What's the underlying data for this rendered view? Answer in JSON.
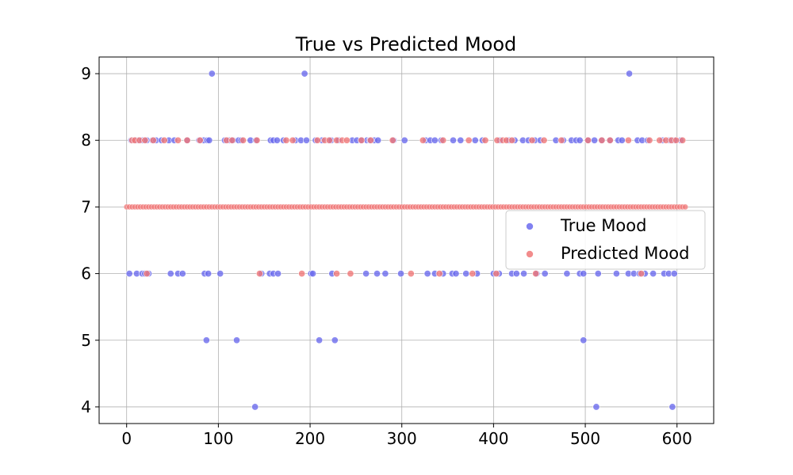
{
  "chart_data": {
    "type": "scatter",
    "title": "True vs Predicted Mood",
    "xlabel": "",
    "ylabel": "",
    "xlim": [
      -30,
      640
    ],
    "ylim": [
      3.75,
      9.25
    ],
    "xticks": [
      0,
      100,
      200,
      300,
      400,
      500,
      600
    ],
    "yticks": [
      4,
      5,
      6,
      7,
      8,
      9
    ],
    "grid": true,
    "legend_position": "center-right",
    "colors": {
      "true": "#6b6bee",
      "predicted": "#f07878",
      "axes": "#000000",
      "grid": "#b0b0b0"
    },
    "series": [
      {
        "name": "True Mood",
        "points": [
          [
            93,
            9
          ],
          [
            194,
            9
          ],
          [
            548,
            9
          ],
          [
            5,
            8
          ],
          [
            8,
            8
          ],
          [
            12,
            8
          ],
          [
            17,
            8
          ],
          [
            22,
            8
          ],
          [
            28,
            8
          ],
          [
            32,
            8
          ],
          [
            38,
            8
          ],
          [
            46,
            8
          ],
          [
            52,
            8
          ],
          [
            66,
            8
          ],
          [
            79,
            8
          ],
          [
            84,
            8
          ],
          [
            88,
            8
          ],
          [
            90,
            8
          ],
          [
            107,
            8
          ],
          [
            112,
            8
          ],
          [
            116,
            8
          ],
          [
            122,
            8
          ],
          [
            125,
            8
          ],
          [
            135,
            8
          ],
          [
            141,
            8
          ],
          [
            157,
            8
          ],
          [
            160,
            8
          ],
          [
            164,
            8
          ],
          [
            171,
            8
          ],
          [
            184,
            8
          ],
          [
            190,
            8
          ],
          [
            196,
            8
          ],
          [
            206,
            8
          ],
          [
            213,
            8
          ],
          [
            220,
            8
          ],
          [
            223,
            8
          ],
          [
            231,
            8
          ],
          [
            246,
            8
          ],
          [
            251,
            8
          ],
          [
            256,
            8
          ],
          [
            262,
            8
          ],
          [
            265,
            8
          ],
          [
            270,
            8
          ],
          [
            274,
            8
          ],
          [
            291,
            8
          ],
          [
            303,
            8
          ],
          [
            326,
            8
          ],
          [
            331,
            8
          ],
          [
            336,
            8
          ],
          [
            343,
            8
          ],
          [
            356,
            8
          ],
          [
            364,
            8
          ],
          [
            380,
            8
          ],
          [
            388,
            8
          ],
          [
            407,
            8
          ],
          [
            417,
            8
          ],
          [
            423,
            8
          ],
          [
            432,
            8
          ],
          [
            438,
            8
          ],
          [
            445,
            8
          ],
          [
            451,
            8
          ],
          [
            468,
            8
          ],
          [
            476,
            8
          ],
          [
            485,
            8
          ],
          [
            490,
            8
          ],
          [
            494,
            8
          ],
          [
            503,
            8
          ],
          [
            510,
            8
          ],
          [
            518,
            8
          ],
          [
            527,
            8
          ],
          [
            536,
            8
          ],
          [
            540,
            8
          ],
          [
            557,
            8
          ],
          [
            562,
            8
          ],
          [
            568,
            8
          ],
          [
            584,
            8
          ],
          [
            592,
            8
          ],
          [
            597,
            8
          ],
          [
            604,
            8
          ],
          [
            3,
            6
          ],
          [
            11,
            6
          ],
          [
            17,
            6
          ],
          [
            20,
            6
          ],
          [
            24,
            6
          ],
          [
            48,
            6
          ],
          [
            56,
            6
          ],
          [
            61,
            6
          ],
          [
            85,
            6
          ],
          [
            89,
            6
          ],
          [
            102,
            6
          ],
          [
            147,
            6
          ],
          [
            156,
            6
          ],
          [
            160,
            6
          ],
          [
            165,
            6
          ],
          [
            201,
            6
          ],
          [
            203,
            6
          ],
          [
            224,
            6
          ],
          [
            261,
            6
          ],
          [
            273,
            6
          ],
          [
            282,
            6
          ],
          [
            299,
            6
          ],
          [
            328,
            6
          ],
          [
            336,
            6
          ],
          [
            345,
            6
          ],
          [
            355,
            6
          ],
          [
            359,
            6
          ],
          [
            370,
            6
          ],
          [
            382,
            6
          ],
          [
            400,
            6
          ],
          [
            406,
            6
          ],
          [
            420,
            6
          ],
          [
            425,
            6
          ],
          [
            433,
            6
          ],
          [
            447,
            6
          ],
          [
            456,
            6
          ],
          [
            480,
            6
          ],
          [
            494,
            6
          ],
          [
            498,
            6
          ],
          [
            514,
            6
          ],
          [
            534,
            6
          ],
          [
            547,
            6
          ],
          [
            553,
            6
          ],
          [
            559,
            6
          ],
          [
            565,
            6
          ],
          [
            574,
            6
          ],
          [
            586,
            6
          ],
          [
            591,
            6
          ],
          [
            597,
            6
          ],
          [
            87,
            5
          ],
          [
            120,
            5
          ],
          [
            210,
            5
          ],
          [
            227,
            5
          ],
          [
            498,
            5
          ],
          [
            140,
            4
          ],
          [
            512,
            4
          ],
          [
            595,
            4
          ]
        ]
      },
      {
        "name": "Predicted Mood",
        "points": [
          [
            6,
            8
          ],
          [
            9,
            8
          ],
          [
            14,
            8
          ],
          [
            20,
            8
          ],
          [
            29,
            8
          ],
          [
            41,
            8
          ],
          [
            56,
            8
          ],
          [
            66,
            8
          ],
          [
            80,
            8
          ],
          [
            109,
            8
          ],
          [
            115,
            8
          ],
          [
            127,
            8
          ],
          [
            142,
            8
          ],
          [
            174,
            8
          ],
          [
            181,
            8
          ],
          [
            208,
            8
          ],
          [
            216,
            8
          ],
          [
            221,
            8
          ],
          [
            229,
            8
          ],
          [
            235,
            8
          ],
          [
            240,
            8
          ],
          [
            256,
            8
          ],
          [
            266,
            8
          ],
          [
            290,
            8
          ],
          [
            323,
            8
          ],
          [
            345,
            8
          ],
          [
            373,
            8
          ],
          [
            391,
            8
          ],
          [
            404,
            8
          ],
          [
            410,
            8
          ],
          [
            414,
            8
          ],
          [
            420,
            8
          ],
          [
            442,
            8
          ],
          [
            455,
            8
          ],
          [
            474,
            8
          ],
          [
            503,
            8
          ],
          [
            518,
            8
          ],
          [
            527,
            8
          ],
          [
            547,
            8
          ],
          [
            570,
            8
          ],
          [
            581,
            8
          ],
          [
            588,
            8
          ],
          [
            594,
            8
          ],
          [
            599,
            8
          ],
          [
            606,
            8
          ],
          [
            22,
            6
          ],
          [
            145,
            6
          ],
          [
            191,
            6
          ],
          [
            229,
            6
          ],
          [
            244,
            6
          ],
          [
            310,
            6
          ],
          [
            341,
            6
          ],
          [
            377,
            6
          ],
          [
            403,
            6
          ],
          [
            446,
            6
          ],
          [
            561,
            6
          ]
        ]
      }
    ]
  }
}
